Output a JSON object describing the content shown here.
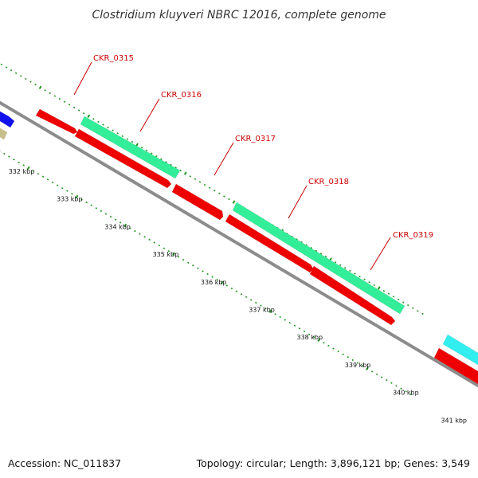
{
  "title": "Clostridium kluyveri NBRC 12016, complete genome",
  "footer": {
    "accession": "Accession: NC_011837",
    "summary": "Topology: circular; Length: 3,896,121 bp; Genes: 3,549"
  },
  "ticks": [
    {
      "kbp": 332,
      "label": "332 kbp"
    },
    {
      "kbp": 333,
      "label": "333 kbp"
    },
    {
      "kbp": 334,
      "label": "334 kbp"
    },
    {
      "kbp": 335,
      "label": "335 kbp"
    },
    {
      "kbp": 336,
      "label": "336 kbp"
    },
    {
      "kbp": 337,
      "label": "337 kbp"
    },
    {
      "kbp": 338,
      "label": "338 kbp"
    },
    {
      "kbp": 339,
      "label": "339 kbp"
    },
    {
      "kbp": 340,
      "label": "340 kbp"
    },
    {
      "kbp": 341,
      "label": "341 kbp"
    }
  ],
  "gene_labels": [
    "CKR_0315",
    "CKR_0316",
    "CKR_0317",
    "CKR_0318",
    "CKR_0319"
  ],
  "colors": {
    "backbone": "#8c8c8c",
    "cds": "#ee0000",
    "feature_green": "#33ee99",
    "feature_cyan": "#33eeee",
    "feature_blue": "#1111ee",
    "feature_olive": "#c8c08a",
    "tick": "#229922",
    "gene_label": "#cc0000"
  }
}
